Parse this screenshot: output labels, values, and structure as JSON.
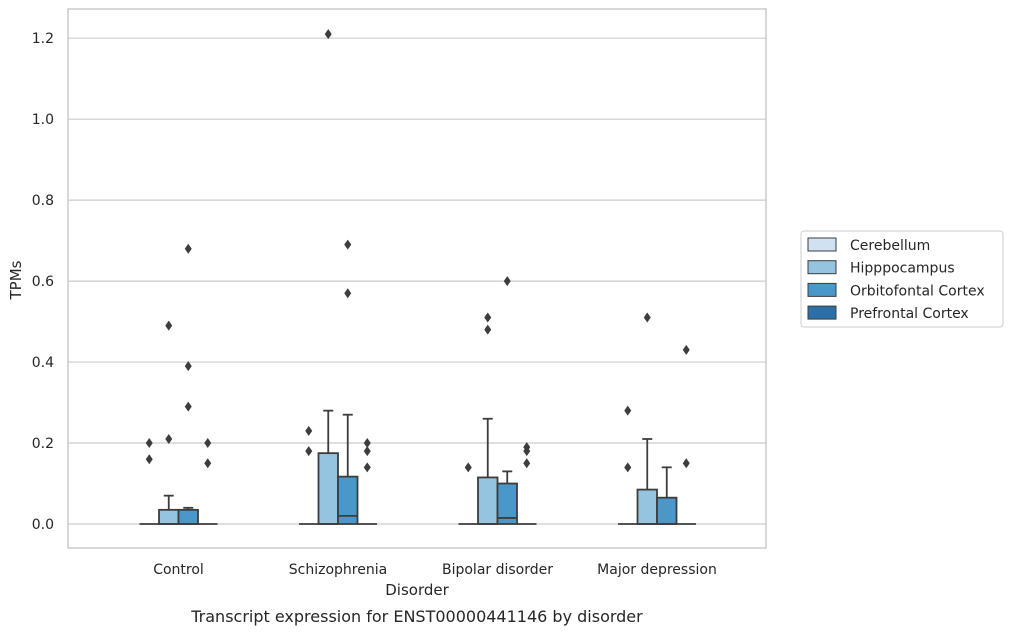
{
  "chart_data": {
    "type": "box",
    "title": "",
    "caption": "Transcript expression for ENST00000441146 by disorder",
    "xlabel": "Disorder",
    "ylabel": "TPMs",
    "ylim": [
      -0.06,
      1.27
    ],
    "yticks": [
      "0.0",
      "0.2",
      "0.4",
      "0.6",
      "0.8",
      "1.0",
      "1.2"
    ],
    "grid": true,
    "legend_position": "right",
    "categories": [
      "Control",
      "Schizophrenia",
      "Bipolar disorder",
      "Major depression"
    ],
    "series": [
      {
        "name": "Cerebellum",
        "color": "#d0e1f2",
        "boxes": [
          {
            "q1": 0,
            "median": 0,
            "q3": 0,
            "whisker_low": 0,
            "whisker_high": 0,
            "outliers": [
              0.16,
              0.2
            ]
          },
          {
            "q1": 0,
            "median": 0,
            "q3": 0,
            "whisker_low": 0,
            "whisker_high": 0,
            "outliers": [
              0.18,
              0.23
            ]
          },
          {
            "q1": 0,
            "median": 0,
            "q3": 0,
            "whisker_low": 0,
            "whisker_high": 0,
            "outliers": [
              0.14
            ]
          },
          {
            "q1": 0,
            "median": 0,
            "q3": 0,
            "whisker_low": 0,
            "whisker_high": 0,
            "outliers": [
              0.14,
              0.28
            ]
          }
        ]
      },
      {
        "name": "Hipppocampus",
        "color": "#94c4df",
        "boxes": [
          {
            "q1": 0,
            "median": 0,
            "q3": 0.035,
            "whisker_low": 0,
            "whisker_high": 0.07,
            "outliers": [
              0.21,
              0.49
            ]
          },
          {
            "q1": 0,
            "median": 0,
            "q3": 0.175,
            "whisker_low": 0,
            "whisker_high": 0.28,
            "outliers": [
              1.21
            ]
          },
          {
            "q1": 0,
            "median": 0,
            "q3": 0.115,
            "whisker_low": 0,
            "whisker_high": 0.26,
            "outliers": [
              0.48,
              0.51
            ]
          },
          {
            "q1": 0,
            "median": 0,
            "q3": 0.085,
            "whisker_low": 0,
            "whisker_high": 0.21,
            "outliers": [
              0.51
            ]
          }
        ]
      },
      {
        "name": "Orbitofontal Cortex",
        "color": "#4a98c9",
        "boxes": [
          {
            "q1": 0,
            "median": 0,
            "q3": 0.035,
            "whisker_low": 0,
            "whisker_high": 0.04,
            "outliers": [
              0.29,
              0.39,
              0.68
            ]
          },
          {
            "q1": 0,
            "median": 0.02,
            "q3": 0.117,
            "whisker_low": 0,
            "whisker_high": 0.27,
            "outliers": [
              0.57,
              0.69
            ]
          },
          {
            "q1": 0,
            "median": 0.015,
            "q3": 0.1,
            "whisker_low": 0,
            "whisker_high": 0.13,
            "outliers": [
              0.6
            ]
          },
          {
            "q1": 0,
            "median": 0,
            "q3": 0.065,
            "whisker_low": 0,
            "whisker_high": 0.14,
            "outliers": []
          }
        ]
      },
      {
        "name": "Prefrontal Cortex",
        "color": "#2e6ea6",
        "boxes": [
          {
            "q1": 0,
            "median": 0,
            "q3": 0,
            "whisker_low": 0,
            "whisker_high": 0,
            "outliers": [
              0.15,
              0.2
            ]
          },
          {
            "q1": 0,
            "median": 0,
            "q3": 0,
            "whisker_low": 0,
            "whisker_high": 0,
            "outliers": [
              0.14,
              0.18,
              0.2
            ]
          },
          {
            "q1": 0,
            "median": 0,
            "q3": 0,
            "whisker_low": 0,
            "whisker_high": 0,
            "outliers": [
              0.15,
              0.18,
              0.19
            ]
          },
          {
            "q1": 0,
            "median": 0,
            "q3": 0,
            "whisker_low": 0,
            "whisker_high": 0,
            "outliers": [
              0.15,
              0.43
            ]
          }
        ]
      }
    ]
  }
}
